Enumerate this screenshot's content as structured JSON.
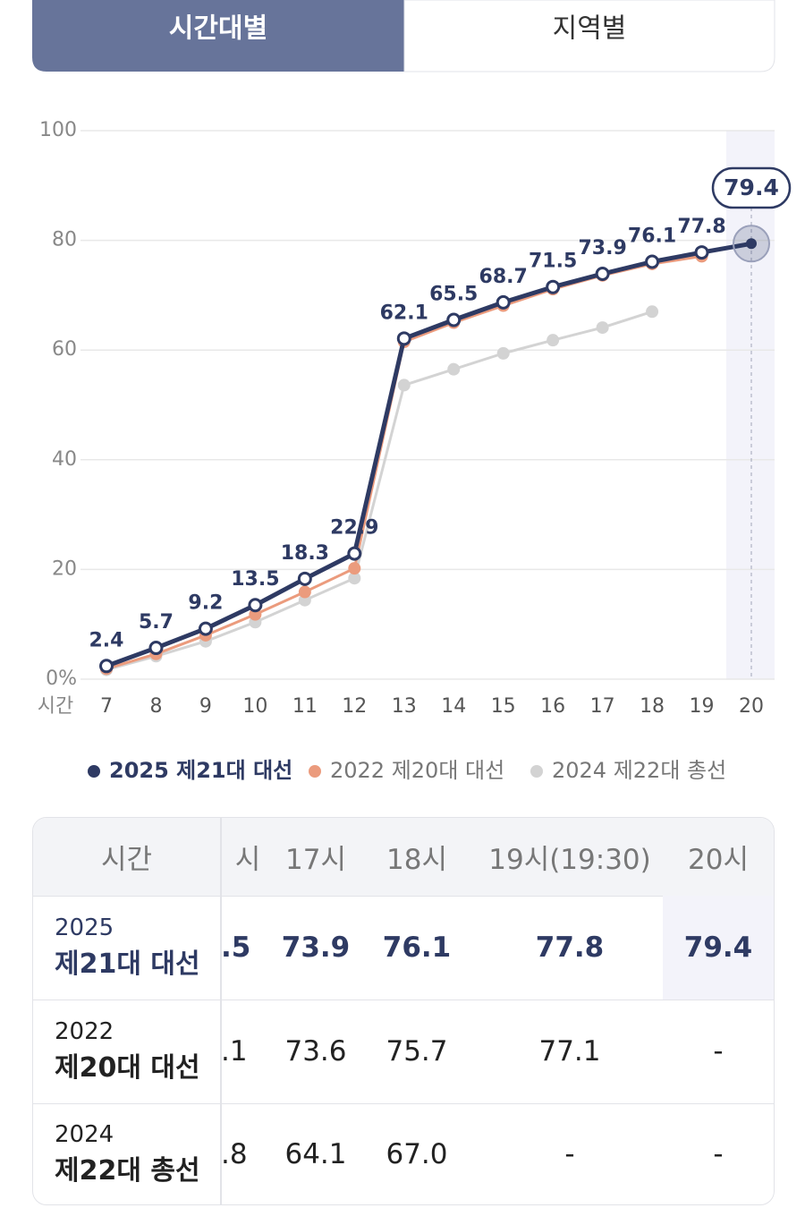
{
  "tabs": [
    "시간대별",
    "지역별"
  ],
  "chart_data": {
    "type": "line",
    "x_label": "시간",
    "categories": [
      "7",
      "8",
      "9",
      "10",
      "11",
      "12",
      "13",
      "14",
      "15",
      "16",
      "17",
      "18",
      "19",
      "20"
    ],
    "ylim": [
      0,
      100
    ],
    "yticks": [
      {
        "value": 0,
        "label": "0%"
      },
      20,
      40,
      60,
      80,
      100
    ],
    "grid": true,
    "series": [
      {
        "name": "2025 제21대 대선",
        "color": "#2e3a63",
        "values": [
          2.4,
          5.7,
          9.2,
          13.5,
          18.3,
          22.9,
          62.1,
          65.5,
          68.7,
          71.5,
          73.9,
          76.1,
          77.8,
          79.4
        ],
        "show_labels": true
      },
      {
        "name": "2022 제20대 대선",
        "color": "#eb9b7d",
        "values": [
          1.9,
          4.6,
          8.0,
          11.8,
          15.9,
          20.2,
          61.5,
          65.0,
          68.1,
          71.1,
          73.6,
          75.7,
          77.1,
          null
        ]
      },
      {
        "name": "2024 제22대 총선",
        "color": "#d3d3d3",
        "values": [
          1.7,
          4.2,
          6.9,
          10.4,
          14.4,
          18.4,
          53.6,
          56.5,
          59.4,
          61.8,
          64.1,
          67.0,
          null,
          null
        ]
      }
    ]
  },
  "table": {
    "header": [
      "시간",
      "시",
      "17시",
      "18시",
      "19시(19:30)",
      "20시"
    ],
    "rows": [
      {
        "year": "2025",
        "name": "제21대 대선",
        "cells": [
          ".5",
          "73.9",
          "76.1",
          "77.8",
          "79.4"
        ]
      },
      {
        "year": "2022",
        "name": "제20대 대선",
        "cells": [
          ".1",
          "73.6",
          "75.7",
          "77.1",
          "-"
        ]
      },
      {
        "year": "2024",
        "name": "제22대 총선",
        "cells": [
          ".8",
          "64.1",
          "67.0",
          "-",
          "-"
        ]
      }
    ]
  }
}
